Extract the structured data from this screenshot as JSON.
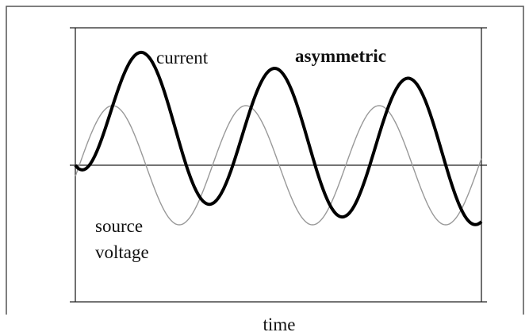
{
  "labels": {
    "current": "current",
    "title": "asymmetric",
    "source_line1": "source",
    "source_line2": "voltage",
    "x_axis": "time"
  }
}
